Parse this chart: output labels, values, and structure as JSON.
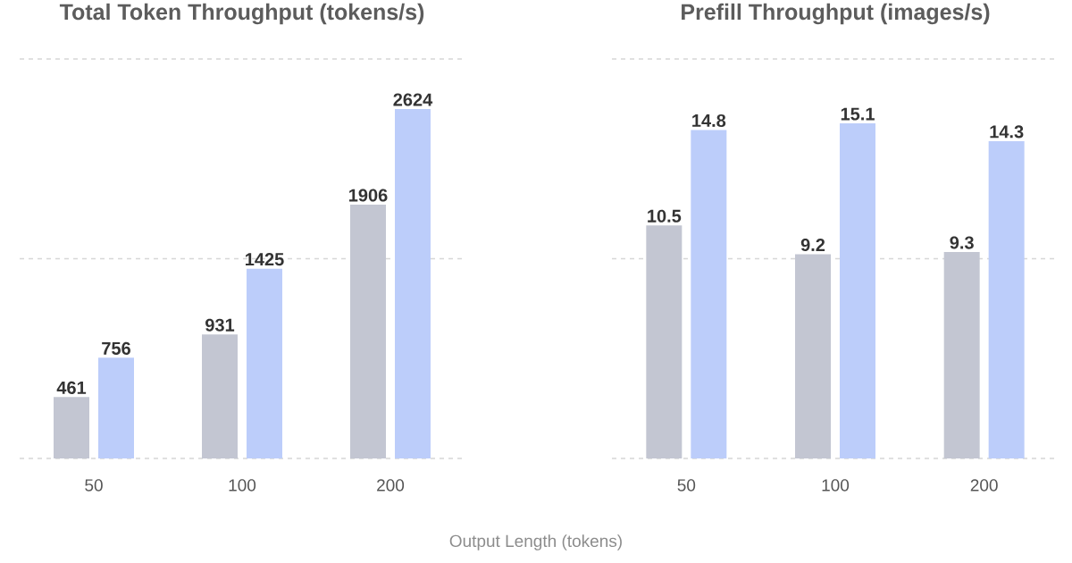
{
  "chart_data": [
    {
      "type": "bar",
      "title": "Total Token Throughput (tokens/s)",
      "xlabel": "Output Length (tokens)",
      "categories": [
        "50",
        "100",
        "200"
      ],
      "series": [
        {
          "color": "#c3c6d2",
          "values": [
            461,
            931,
            1906
          ]
        },
        {
          "color": "#bccdfa",
          "values": [
            756,
            1425,
            2624
          ]
        }
      ],
      "ylim": [
        0,
        3000
      ],
      "yticks": [
        {
          "value": 0,
          "label": null
        },
        {
          "value": 1500,
          "label": null
        },
        {
          "value": 3000,
          "label": null
        }
      ],
      "grid": "y",
      "tick_labels": "x",
      "data_labels": true
    },
    {
      "type": "bar",
      "title": "Prefill Throughput (images/s)",
      "categories": [
        "50",
        "100",
        "200"
      ],
      "series": [
        {
          "color": "#c3c6d2",
          "values": [
            10.5,
            9.2,
            9.3
          ]
        },
        {
          "color": "#bccdfa",
          "values": [
            14.8,
            15.1,
            14.3
          ]
        }
      ],
      "ylim": [
        0,
        18
      ],
      "yticks": [
        {
          "value": 0,
          "label": null
        },
        {
          "value": 9,
          "label": null
        },
        {
          "value": 18,
          "label": null
        }
      ],
      "grid": "y",
      "tick_labels": "x",
      "data_labels": true
    }
  ]
}
